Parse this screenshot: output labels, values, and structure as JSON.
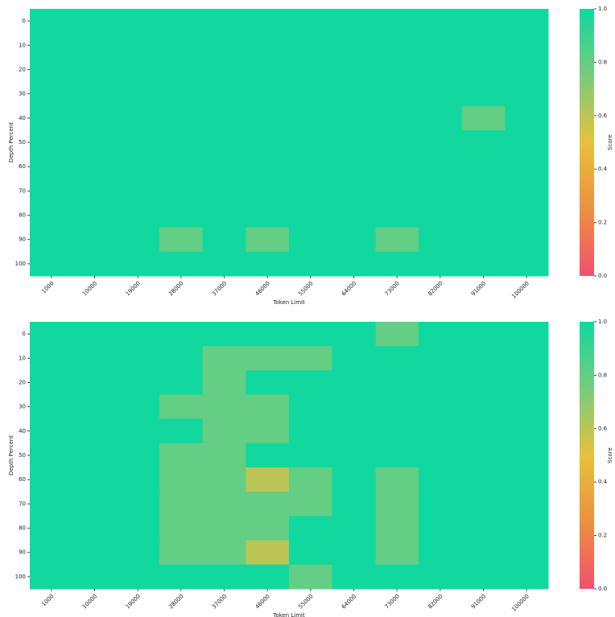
{
  "chart_data": [
    {
      "type": "heatmap",
      "x_label": "Token Limit",
      "y_label": "Depth Percent",
      "colorbar_label": "Score",
      "categories": [
        1000,
        10000,
        19000,
        28000,
        37000,
        46000,
        55000,
        64000,
        73000,
        82000,
        91000,
        100000
      ],
      "y_categories": [
        0,
        10,
        20,
        30,
        40,
        50,
        60,
        70,
        80,
        90,
        100
      ],
      "cmap": [
        "#f2506e",
        "#ec9040",
        "#e8c13b",
        "#78cc7d",
        "#10d89f"
      ],
      "zlim": [
        0,
        1
      ],
      "zticks": [
        {
          "value": 0,
          "label": "0.0"
        },
        {
          "value": 0.2,
          "label": "0.2"
        },
        {
          "value": 0.4,
          "label": "0.4"
        },
        {
          "value": 0.6,
          "label": "0.6"
        },
        {
          "value": 0.8,
          "label": "0.8"
        },
        {
          "value": 1,
          "label": "1.0"
        }
      ],
      "values": [
        [
          1,
          1,
          1,
          1,
          1,
          1,
          1,
          1,
          1,
          1,
          1,
          1
        ],
        [
          1,
          1,
          1,
          1,
          1,
          1,
          1,
          1,
          1,
          1,
          1,
          1
        ],
        [
          1,
          1,
          1,
          1,
          1,
          1,
          1,
          1,
          1,
          1,
          1,
          1
        ],
        [
          1,
          1,
          1,
          1,
          1,
          1,
          1,
          1,
          1,
          1,
          1,
          1
        ],
        [
          1,
          1,
          1,
          1,
          1,
          1,
          1,
          1,
          1,
          1,
          0.8,
          1
        ],
        [
          1,
          1,
          1,
          1,
          1,
          1,
          1,
          1,
          1,
          1,
          1,
          1
        ],
        [
          1,
          1,
          1,
          1,
          1,
          1,
          1,
          1,
          1,
          1,
          1,
          1
        ],
        [
          1,
          1,
          1,
          1,
          1,
          1,
          1,
          1,
          1,
          1,
          1,
          1
        ],
        [
          1,
          1,
          1,
          1,
          1,
          1,
          1,
          1,
          1,
          1,
          1,
          1
        ],
        [
          1,
          1,
          1,
          0.8,
          1,
          0.8,
          1,
          1,
          0.8,
          1,
          1,
          1
        ],
        [
          1,
          1,
          1,
          1,
          1,
          1,
          1,
          1,
          1,
          1,
          1,
          1
        ]
      ]
    },
    {
      "type": "heatmap",
      "x_label": "Token Limit",
      "y_label": "Depth Percent",
      "colorbar_label": "Score",
      "categories": [
        1000,
        10000,
        19000,
        28000,
        37000,
        46000,
        55000,
        64000,
        73000,
        82000,
        91000,
        100000
      ],
      "y_categories": [
        0,
        10,
        20,
        30,
        40,
        50,
        60,
        70,
        80,
        90,
        100
      ],
      "cmap": [
        "#f2506e",
        "#ec9040",
        "#e8c13b",
        "#78cc7d",
        "#10d89f"
      ],
      "zlim": [
        0,
        1
      ],
      "zticks": [
        {
          "value": 0,
          "label": "0.0"
        },
        {
          "value": 0.2,
          "label": "0.2"
        },
        {
          "value": 0.4,
          "label": "0.4"
        },
        {
          "value": 0.6,
          "label": "0.6"
        },
        {
          "value": 0.8,
          "label": "0.8"
        },
        {
          "value": 1,
          "label": "1.0"
        }
      ],
      "values": [
        [
          1,
          1,
          1,
          1,
          1,
          1,
          1,
          1,
          0.8,
          1,
          1,
          1
        ],
        [
          1,
          1,
          1,
          1,
          0.8,
          0.8,
          0.8,
          1,
          1,
          1,
          1,
          1
        ],
        [
          1,
          1,
          1,
          1,
          0.8,
          1,
          1,
          1,
          1,
          1,
          1,
          1
        ],
        [
          1,
          1,
          1,
          0.8,
          0.8,
          0.8,
          1,
          1,
          1,
          1,
          1,
          1
        ],
        [
          1,
          1,
          1,
          1,
          0.8,
          0.8,
          1,
          1,
          1,
          1,
          1,
          1
        ],
        [
          1,
          1,
          1,
          0.8,
          0.8,
          1,
          1,
          1,
          1,
          1,
          1,
          1
        ],
        [
          1,
          1,
          1,
          0.8,
          0.8,
          0.6,
          0.8,
          1,
          0.8,
          1,
          1,
          1
        ],
        [
          1,
          1,
          1,
          0.8,
          0.8,
          0.8,
          0.8,
          1,
          0.8,
          1,
          1,
          1
        ],
        [
          1,
          1,
          1,
          0.8,
          0.8,
          0.8,
          1,
          1,
          0.8,
          1,
          1,
          1
        ],
        [
          1,
          1,
          1,
          0.8,
          0.8,
          0.6,
          1,
          1,
          0.8,
          1,
          1,
          1
        ],
        [
          1,
          1,
          1,
          1,
          1,
          1,
          0.8,
          1,
          1,
          1,
          1,
          1
        ]
      ]
    }
  ]
}
